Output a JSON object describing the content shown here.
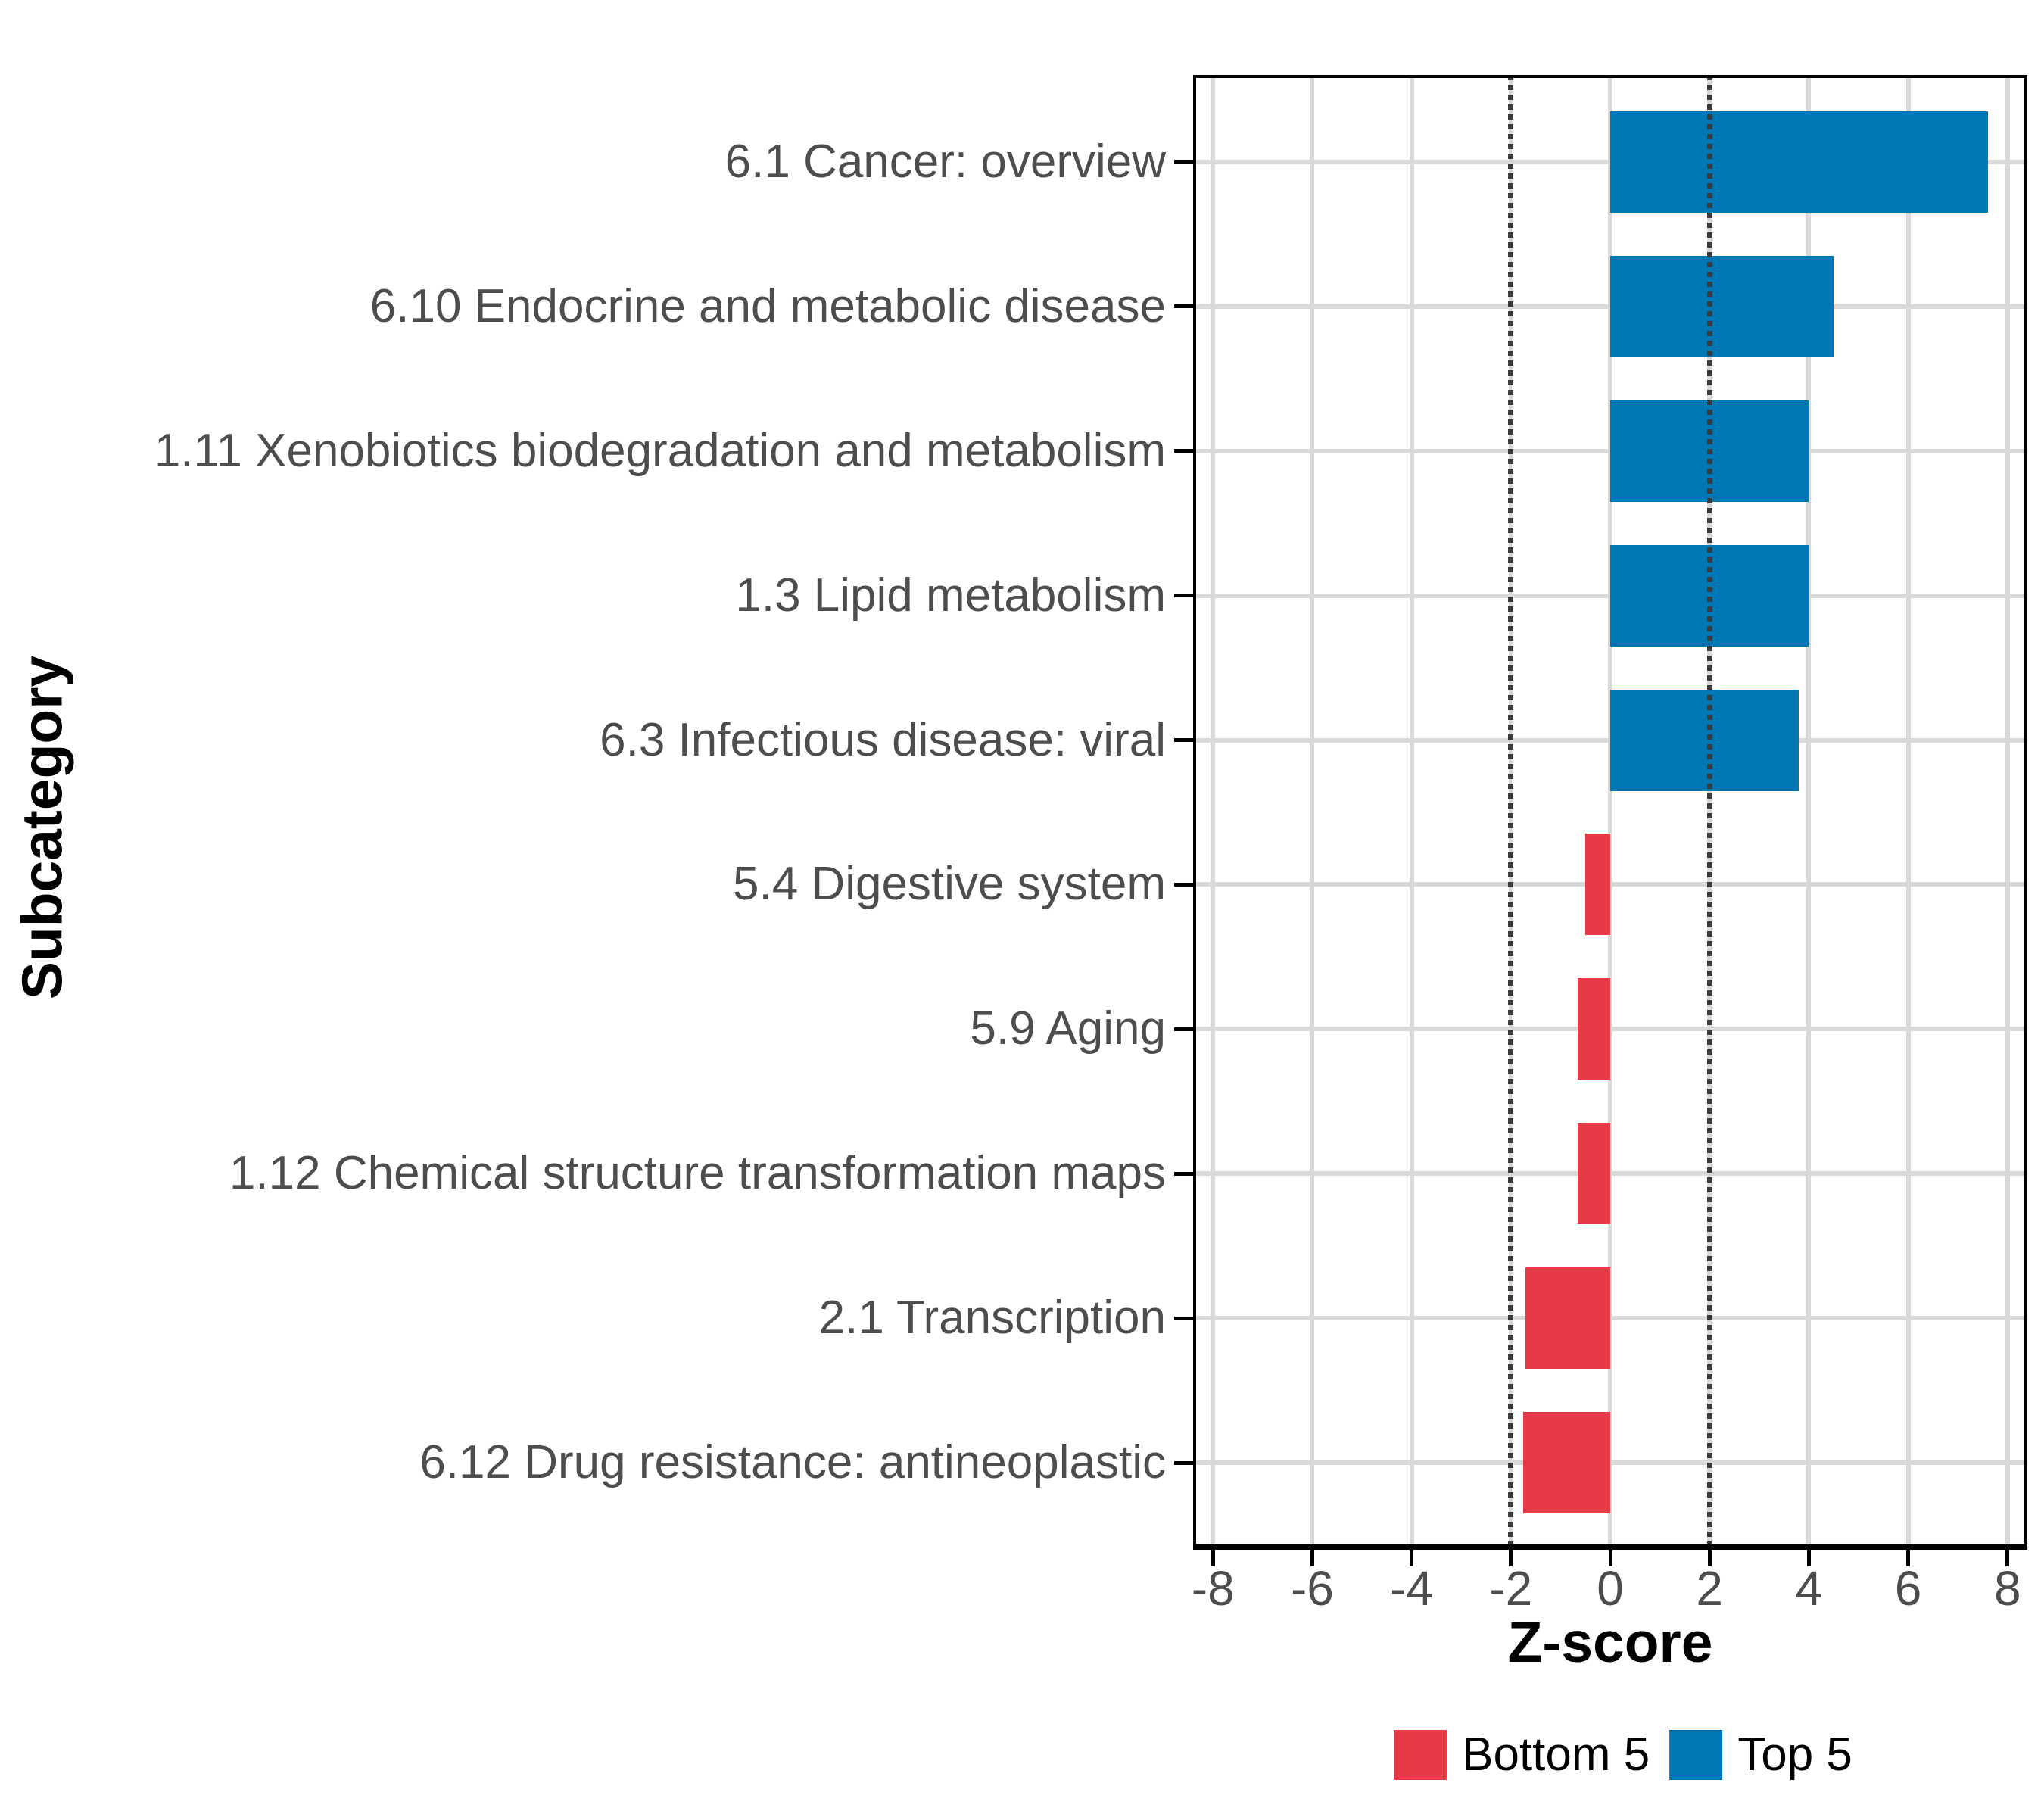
{
  "chart_data": {
    "type": "bar",
    "orientation": "horizontal",
    "title": "",
    "xlabel": "Z-score",
    "ylabel": "Subcategory",
    "categories": [
      "6.1 Cancer: overview",
      "6.10 Endocrine and metabolic disease",
      "1.11 Xenobiotics biodegradation and metabolism",
      "1.3 Lipid metabolism",
      "6.3 Infectious disease: viral",
      "5.4 Digestive system",
      "5.9 Aging",
      "1.12 Chemical structure transformation maps",
      "2.1 Transcription",
      "6.12 Drug resistance: antineoplastic"
    ],
    "values": [
      7.6,
      4.5,
      4.0,
      4.0,
      3.8,
      -0.5,
      -0.65,
      -0.65,
      -1.7,
      -1.75
    ],
    "groups": [
      "Top 5",
      "Top 5",
      "Top 5",
      "Top 5",
      "Top 5",
      "Bottom 5",
      "Bottom 5",
      "Bottom 5",
      "Bottom 5",
      "Bottom 5"
    ],
    "group_colors": {
      "Top 5": "#0077B5",
      "Bottom 5": "#E73946"
    },
    "xlim": [
      -8.4,
      8.4
    ],
    "x_ticks": [
      -8,
      -6,
      -4,
      -2,
      0,
      2,
      4,
      6,
      8
    ],
    "x_tick_labels": [
      "-8",
      "-6",
      "-4",
      "-2",
      "0",
      "2",
      "4",
      "6",
      "8"
    ],
    "reference_lines": [
      -2,
      2
    ],
    "grid": "major-only",
    "grid_color": "#D9D9D9",
    "reference_line_color": "#3B3B3B",
    "axis_text_color": "#4D4D4D",
    "legend": {
      "position": "bottom",
      "entries": [
        {
          "label": "Bottom 5",
          "color": "#E73946"
        },
        {
          "label": "Top 5",
          "color": "#0077B5"
        }
      ]
    }
  }
}
